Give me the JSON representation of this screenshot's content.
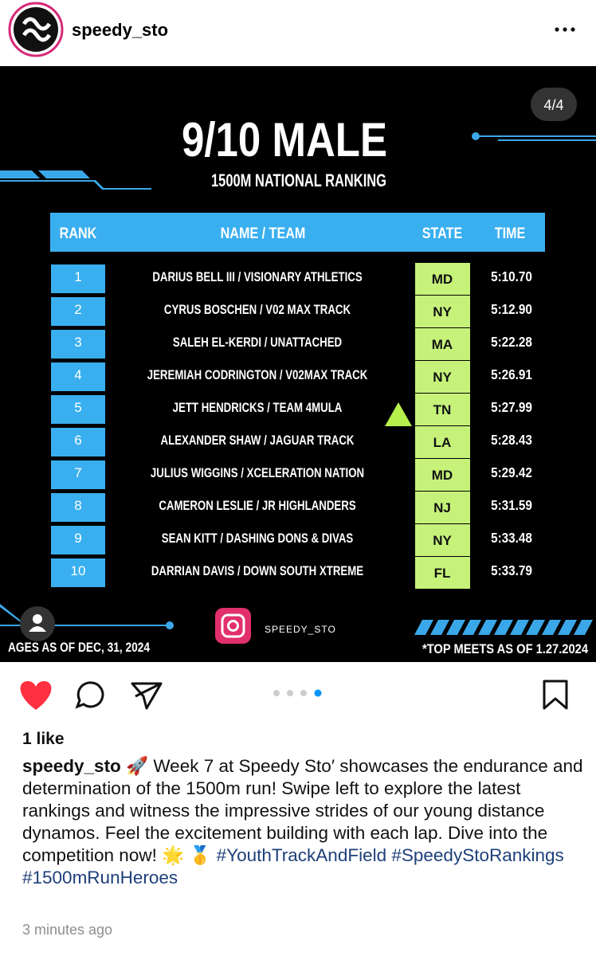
{
  "header": {
    "username": "speedy_sto"
  },
  "slide": {
    "counter": "4/4",
    "title": "9/10 MALE",
    "subtitle": "1500M NATIONAL RANKING",
    "columns": [
      "RANK",
      "NAME / TEAM",
      "STATE",
      "TIME"
    ],
    "rows": [
      {
        "rank": 1,
        "name": "DARIUS BELL III / VISIONARY ATHLETICS",
        "state": "MD",
        "time": "5:10.70"
      },
      {
        "rank": 2,
        "name": "CYRUS BOSCHEN / V02 MAX TRACK",
        "state": "NY",
        "time": "5:12.90"
      },
      {
        "rank": 3,
        "name": "SALEH EL-KERDI / UNATTACHED",
        "state": "MA",
        "time": "5:22.28"
      },
      {
        "rank": 4,
        "name": "JEREMIAH CODRINGTON / V02MAX TRACK",
        "state": "NY",
        "time": "5:26.91"
      },
      {
        "rank": 5,
        "name": "JETT HENDRICKS / TEAM 4MULA",
        "state": "TN",
        "time": "5:27.99"
      },
      {
        "rank": 6,
        "name": "ALEXANDER SHAW / JAGUAR TRACK",
        "state": "LA",
        "time": "5:28.43"
      },
      {
        "rank": 7,
        "name": "JULIUS WIGGINS / XCELERATION NATION",
        "state": "MD",
        "time": "5:29.42"
      },
      {
        "rank": 8,
        "name": "CAMERON LESLIE / JR HIGHLANDERS",
        "state": "NJ",
        "time": "5:31.59"
      },
      {
        "rank": 9,
        "name": "SEAN KITT / DASHING DONS & DIVAS",
        "state": "NY",
        "time": "5:33.48"
      },
      {
        "rank": 10,
        "name": "DARRIAN DAVIS / DOWN SOUTH XTREME",
        "state": "FL",
        "time": "5:33.79"
      }
    ],
    "footer_left": "AGES AS OF DEC, 31, 2024",
    "footer_right": "*TOP MEETS AS OF 1.27.2024",
    "handle": "SPEEDY_STO"
  },
  "post": {
    "likes": "1 like",
    "username": "speedy_sto",
    "caption": "🚀 Week 7 at Speedy Sto′ showcases the endurance and determination of the 1500m run! Swipe left to explore the latest rankings and witness the impressive strides of our young distance dynamos. Feel the excitement building with each lap. Dive into the competition now! 🌟 🥇",
    "hashtags": [
      "#YouthTrackAndField",
      "#SpeedyStoRankings",
      "#1500mRunHeroes"
    ],
    "timestamp": "3 minutes ago"
  }
}
